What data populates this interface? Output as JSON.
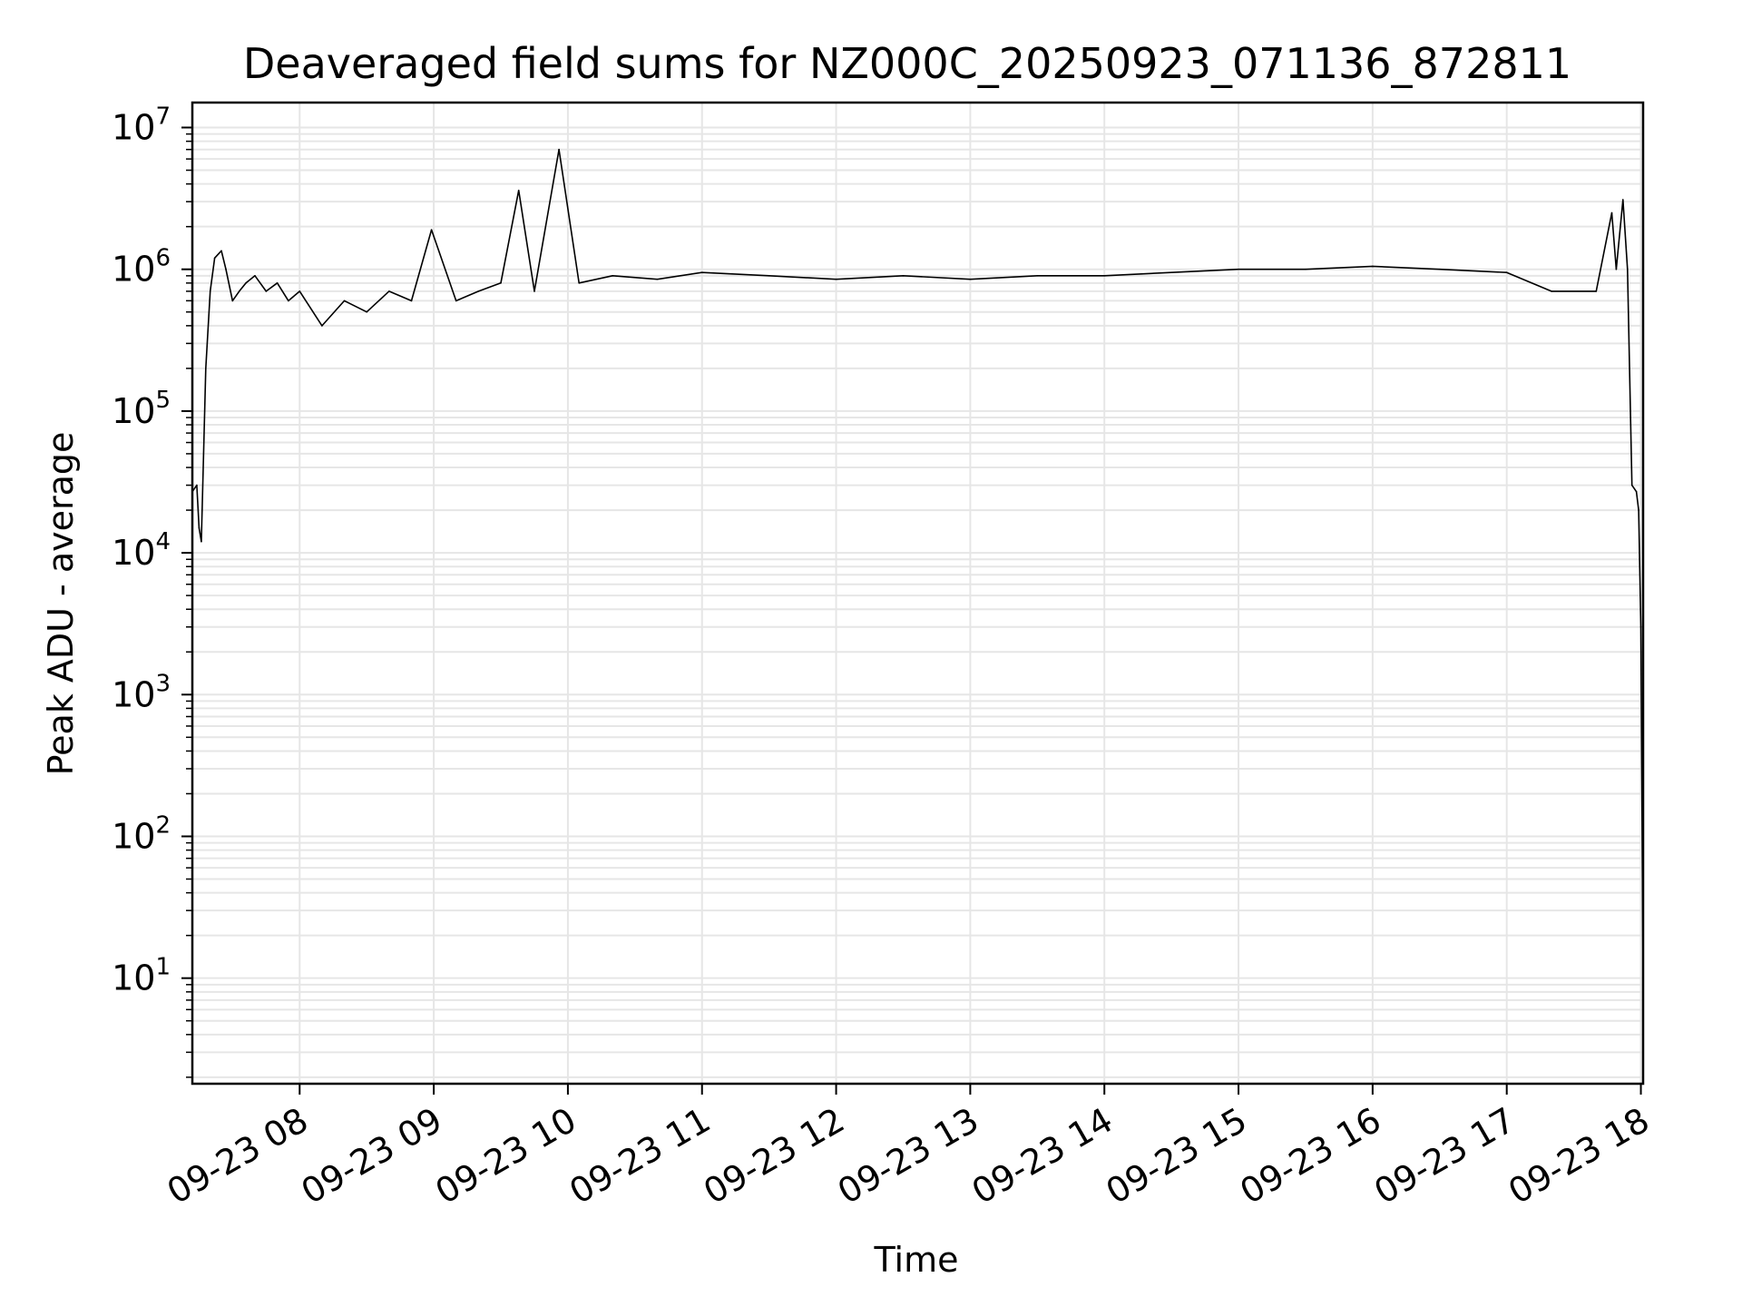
{
  "chart_data": {
    "type": "line",
    "title": "Deaveraged field sums for NZ000C_20250923_071136_872811",
    "xlabel": "Time",
    "ylabel": "Peak ADU - average",
    "y_scale": "log",
    "ylim": [
      1.8,
      15000000
    ],
    "xlim": [
      "2025-09-23 07:12",
      "2025-09-23 18:01"
    ],
    "grid": true,
    "line_color": "#000000",
    "grid_color": "#e6e6e6",
    "y_ticks": [
      {
        "value": 10,
        "base": "10",
        "exp": "1"
      },
      {
        "value": 100,
        "base": "10",
        "exp": "2"
      },
      {
        "value": 1000,
        "base": "10",
        "exp": "3"
      },
      {
        "value": 10000,
        "base": "10",
        "exp": "4"
      },
      {
        "value": 100000,
        "base": "10",
        "exp": "5"
      },
      {
        "value": 1000000,
        "base": "10",
        "exp": "6"
      },
      {
        "value": 10000000,
        "base": "10",
        "exp": "7"
      }
    ],
    "x_ticks": [
      {
        "value": "2025-09-23 08:00",
        "label": "09-23 08"
      },
      {
        "value": "2025-09-23 09:00",
        "label": "09-23 09"
      },
      {
        "value": "2025-09-23 10:00",
        "label": "09-23 10"
      },
      {
        "value": "2025-09-23 11:00",
        "label": "09-23 11"
      },
      {
        "value": "2025-09-23 12:00",
        "label": "09-23 12"
      },
      {
        "value": "2025-09-23 13:00",
        "label": "09-23 13"
      },
      {
        "value": "2025-09-23 14:00",
        "label": "09-23 14"
      },
      {
        "value": "2025-09-23 15:00",
        "label": "09-23 15"
      },
      {
        "value": "2025-09-23 16:00",
        "label": "09-23 16"
      },
      {
        "value": "2025-09-23 17:00",
        "label": "09-23 17"
      },
      {
        "value": "2025-09-23 18:00",
        "label": "09-23 18"
      }
    ],
    "series": [
      {
        "x": [
          "2025-09-23 07:12",
          "2025-09-23 07:14",
          "2025-09-23 07:15",
          "2025-09-23 07:16",
          "2025-09-23 07:18",
          "2025-09-23 07:20",
          "2025-09-23 07:22",
          "2025-09-23 07:25",
          "2025-09-23 07:27",
          "2025-09-23 07:30",
          "2025-09-23 07:33",
          "2025-09-23 07:36",
          "2025-09-23 07:40",
          "2025-09-23 07:45",
          "2025-09-23 07:50",
          "2025-09-23 07:55",
          "2025-09-23 08:00",
          "2025-09-23 08:10",
          "2025-09-23 08:20",
          "2025-09-23 08:30",
          "2025-09-23 08:40",
          "2025-09-23 08:50",
          "2025-09-23 08:59",
          "2025-09-23 09:10",
          "2025-09-23 09:20",
          "2025-09-23 09:30",
          "2025-09-23 09:38",
          "2025-09-23 09:45",
          "2025-09-23 09:56",
          "2025-09-23 10:05",
          "2025-09-23 10:20",
          "2025-09-23 10:40",
          "2025-09-23 11:00",
          "2025-09-23 11:30",
          "2025-09-23 12:00",
          "2025-09-23 12:30",
          "2025-09-23 13:00",
          "2025-09-23 13:30",
          "2025-09-23 14:00",
          "2025-09-23 14:30",
          "2025-09-23 15:00",
          "2025-09-23 15:30",
          "2025-09-23 16:00",
          "2025-09-23 16:30",
          "2025-09-23 17:00",
          "2025-09-23 17:20",
          "2025-09-23 17:40",
          "2025-09-23 17:47",
          "2025-09-23 17:49",
          "2025-09-23 17:52",
          "2025-09-23 17:54",
          "2025-09-23 17:56",
          "2025-09-23 17:58",
          "2025-09-23 17:59",
          "2025-09-23 18:00",
          "2025-09-23 18:01"
        ],
        "values": [
          27000,
          30000,
          15000,
          12000,
          200000,
          700000,
          1200000,
          1350000,
          1000000,
          600000,
          700000,
          800000,
          900000,
          700000,
          800000,
          600000,
          700000,
          400000,
          600000,
          500000,
          700000,
          600000,
          1900000,
          600000,
          700000,
          800000,
          3600000,
          700000,
          7000000,
          800000,
          900000,
          850000,
          950000,
          900000,
          850000,
          900000,
          850000,
          900000,
          900000,
          950000,
          1000000,
          1000000,
          1050000,
          1000000,
          950000,
          700000,
          700000,
          2500000,
          1000000,
          3100000,
          1000000,
          30000,
          27000,
          20000,
          3000,
          10
        ]
      }
    ]
  }
}
